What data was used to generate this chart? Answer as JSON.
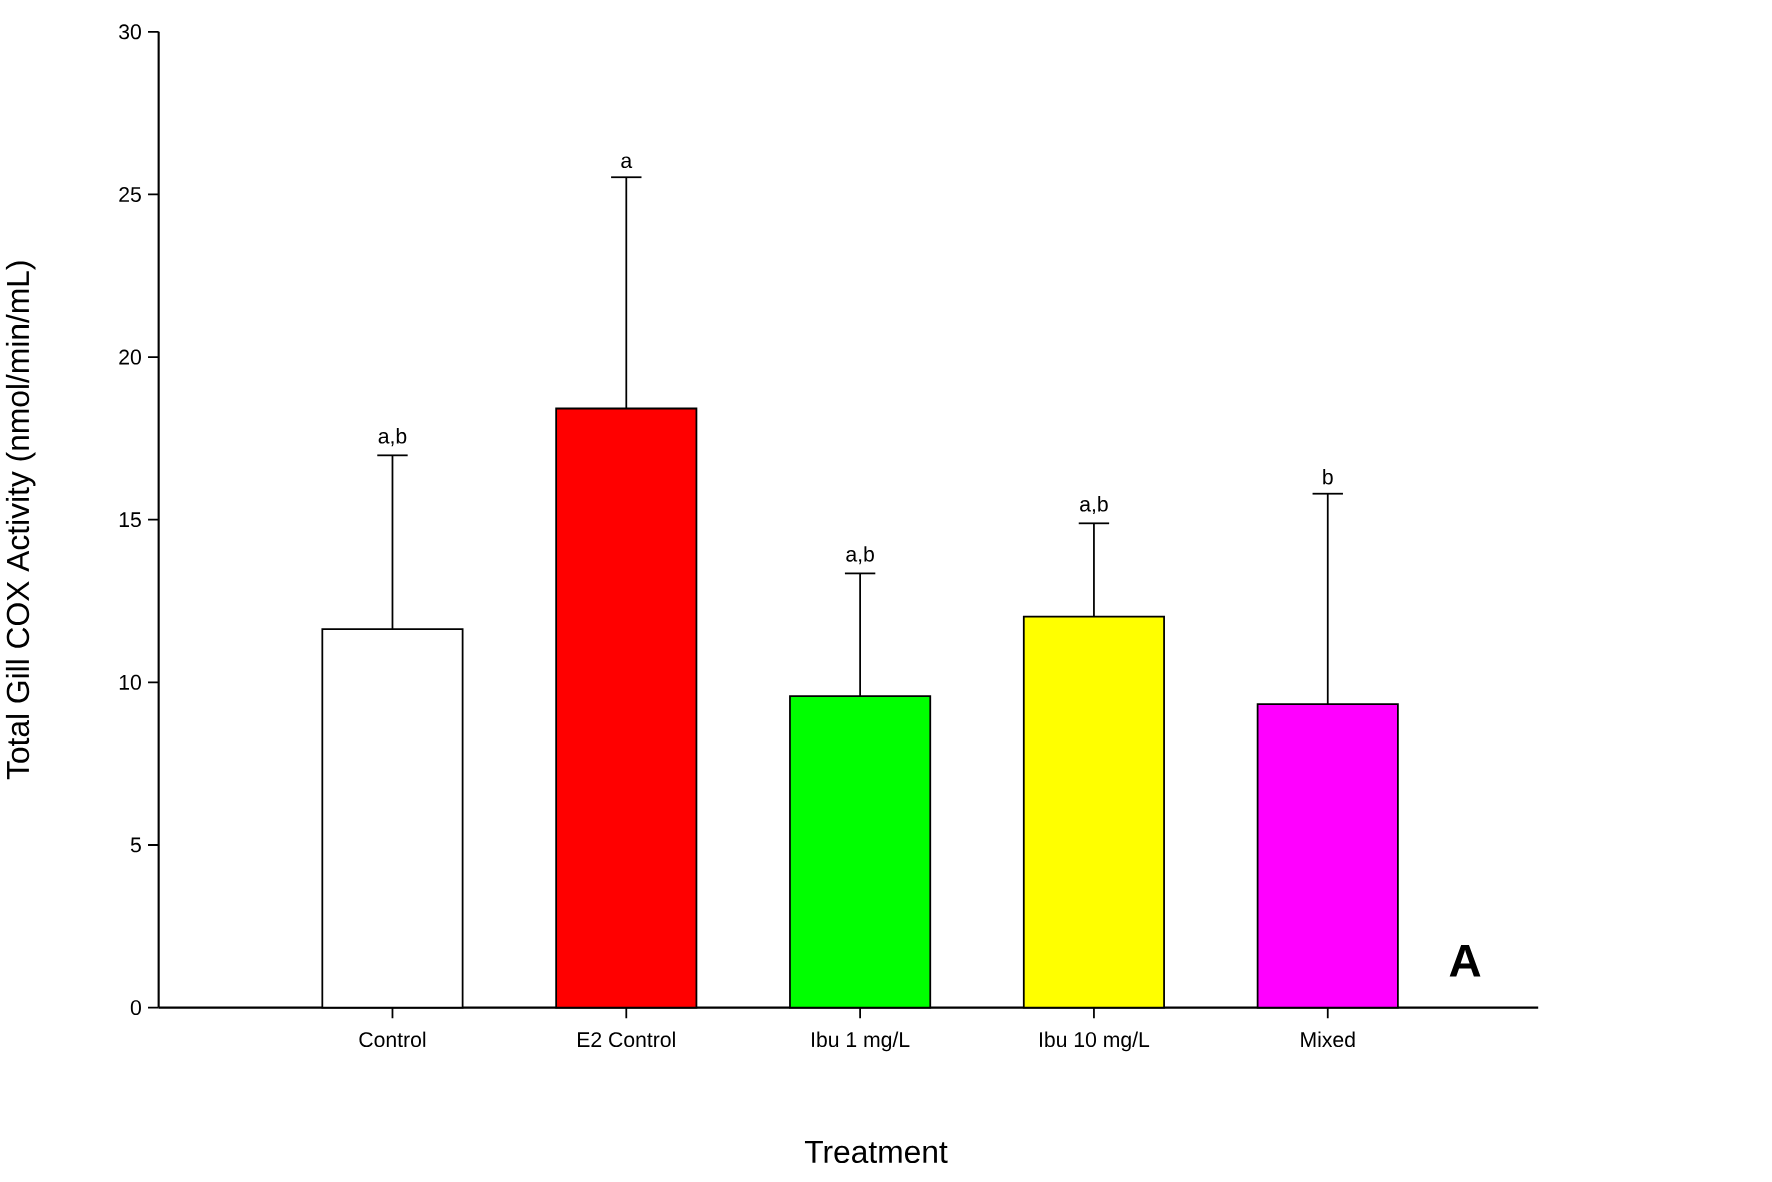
{
  "chart_data": {
    "type": "bar",
    "xlabel": "Treatment",
    "ylabel": "Total Gill COX Activity (nmol/min/mL)",
    "categories": [
      "Control",
      "E2 Control",
      "Ibu 1 mg/L",
      "Ibu 10 mg/L",
      "Mixed"
    ],
    "values": [
      11.64,
      18.42,
      9.58,
      12.02,
      9.33
    ],
    "colors": [
      "#ffffff",
      "#ff0000",
      "#00ff00",
      "#ffff00",
      "#ff00ff"
    ],
    "errors": [
      [
        11.64,
        16.98
      ],
      [
        18.42,
        25.53
      ],
      [
        9.58,
        13.35
      ],
      [
        12.02,
        14.89
      ],
      [
        9.33,
        15.8
      ]
    ],
    "ylim": [
      0,
      30
    ],
    "yticks": [
      0,
      5,
      10,
      15,
      20,
      25,
      30
    ],
    "annotations": [
      {
        "text": "a,b",
        "x": "Control",
        "y": 16.98
      },
      {
        "text": "a",
        "x": "E2 Control",
        "y": 25.53
      },
      {
        "text": "a,b",
        "x": "Ibu 1 mg/L",
        "y": 13.35
      },
      {
        "text": "a,b",
        "x": "Ibu 10 mg/L",
        "y": 14.89
      },
      {
        "text": "b",
        "x": "Mixed",
        "y": 15.8
      },
      "A"
    ]
  }
}
